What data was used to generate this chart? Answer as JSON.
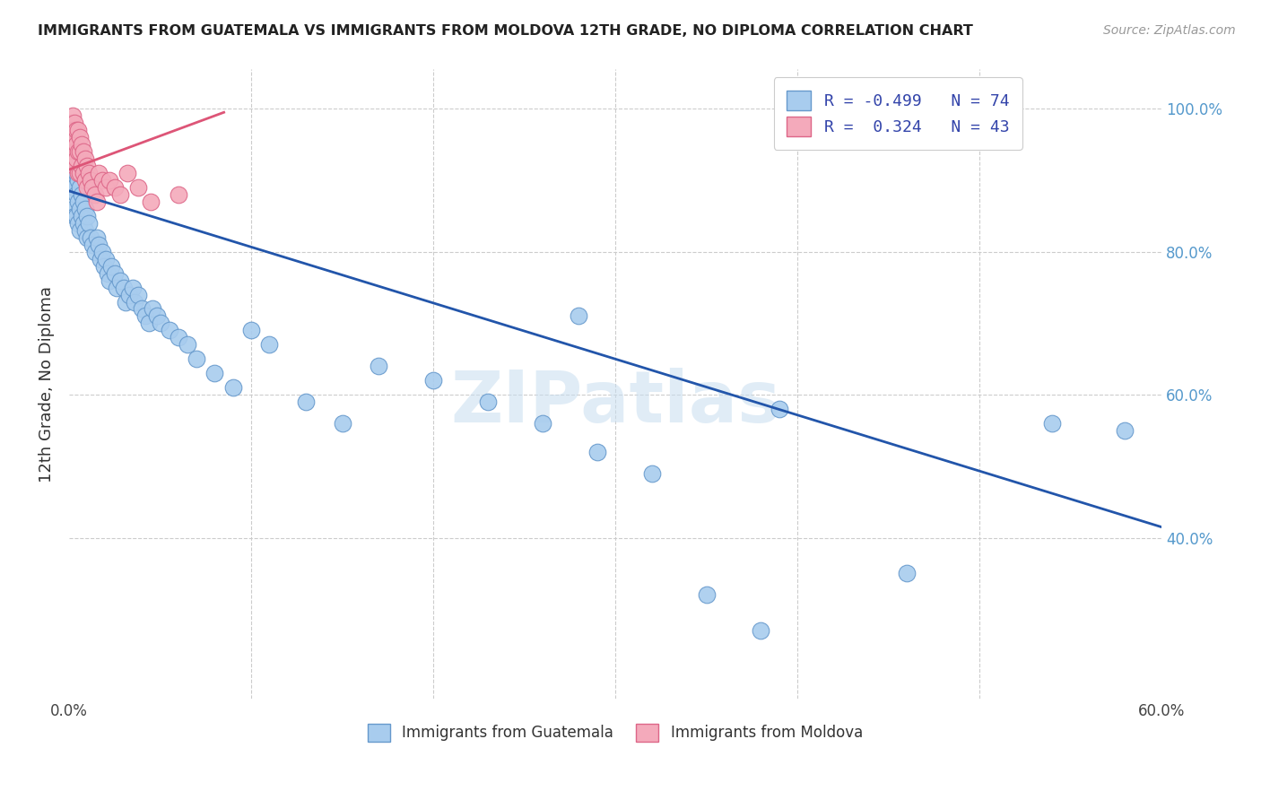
{
  "title": "IMMIGRANTS FROM GUATEMALA VS IMMIGRANTS FROM MOLDOVA 12TH GRADE, NO DIPLOMA CORRELATION CHART",
  "source": "Source: ZipAtlas.com",
  "ylabel": "12th Grade, No Diploma",
  "xlim": [
    0.0,
    0.6
  ],
  "ylim": [
    0.175,
    1.055
  ],
  "xtick_positions": [
    0.0,
    0.1,
    0.2,
    0.3,
    0.4,
    0.5,
    0.6
  ],
  "xtick_labels": [
    "0.0%",
    "",
    "",
    "",
    "",
    "",
    "60.0%"
  ],
  "ytick_positions": [
    0.4,
    0.6,
    0.8,
    1.0
  ],
  "ytick_labels": [
    "40.0%",
    "60.0%",
    "80.0%",
    "100.0%"
  ],
  "blue_R": -0.499,
  "blue_N": 74,
  "pink_R": 0.324,
  "pink_N": 43,
  "blue_color": "#A8CCEE",
  "blue_edge": "#6699CC",
  "pink_color": "#F4AABB",
  "pink_edge": "#DD6688",
  "blue_line_color": "#2255AA",
  "pink_line_color": "#DD5577",
  "blue_line_x0": 0.0,
  "blue_line_y0": 0.885,
  "blue_line_x1": 0.6,
  "blue_line_y1": 0.415,
  "pink_line_x0": 0.0,
  "pink_line_y0": 0.915,
  "pink_line_x1": 0.085,
  "pink_line_y1": 0.995,
  "watermark": "ZIPatlas",
  "background_color": "#FFFFFF",
  "grid_color": "#CCCCCC",
  "legend_label_blue": "R = -0.499   N = 74",
  "legend_label_pink": "R =  0.324   N = 43",
  "bottom_legend_blue": "Immigrants from Guatemala",
  "bottom_legend_pink": "Immigrants from Moldova",
  "blue_x": [
    0.001,
    0.002,
    0.002,
    0.003,
    0.003,
    0.003,
    0.004,
    0.004,
    0.004,
    0.005,
    0.005,
    0.005,
    0.006,
    0.006,
    0.006,
    0.007,
    0.007,
    0.008,
    0.008,
    0.009,
    0.009,
    0.01,
    0.01,
    0.011,
    0.012,
    0.013,
    0.014,
    0.015,
    0.016,
    0.017,
    0.018,
    0.019,
    0.02,
    0.021,
    0.022,
    0.023,
    0.025,
    0.026,
    0.028,
    0.03,
    0.031,
    0.033,
    0.035,
    0.036,
    0.038,
    0.04,
    0.042,
    0.044,
    0.046,
    0.048,
    0.05,
    0.055,
    0.06,
    0.065,
    0.07,
    0.08,
    0.09,
    0.1,
    0.11,
    0.13,
    0.15,
    0.17,
    0.2,
    0.23,
    0.26,
    0.29,
    0.32,
    0.35,
    0.38,
    0.28,
    0.46,
    0.39,
    0.54,
    0.58
  ],
  "blue_y": [
    0.91,
    0.89,
    0.86,
    0.92,
    0.89,
    0.85,
    0.91,
    0.88,
    0.85,
    0.9,
    0.87,
    0.84,
    0.89,
    0.86,
    0.83,
    0.88,
    0.85,
    0.87,
    0.84,
    0.86,
    0.83,
    0.85,
    0.82,
    0.84,
    0.82,
    0.81,
    0.8,
    0.82,
    0.81,
    0.79,
    0.8,
    0.78,
    0.79,
    0.77,
    0.76,
    0.78,
    0.77,
    0.75,
    0.76,
    0.75,
    0.73,
    0.74,
    0.75,
    0.73,
    0.74,
    0.72,
    0.71,
    0.7,
    0.72,
    0.71,
    0.7,
    0.69,
    0.68,
    0.67,
    0.65,
    0.63,
    0.61,
    0.69,
    0.67,
    0.59,
    0.56,
    0.64,
    0.62,
    0.59,
    0.56,
    0.52,
    0.49,
    0.32,
    0.27,
    0.71,
    0.35,
    0.58,
    0.56,
    0.55
  ],
  "pink_x": [
    0.001,
    0.001,
    0.001,
    0.002,
    0.002,
    0.002,
    0.002,
    0.003,
    0.003,
    0.003,
    0.003,
    0.004,
    0.004,
    0.004,
    0.005,
    0.005,
    0.005,
    0.006,
    0.006,
    0.006,
    0.007,
    0.007,
    0.008,
    0.008,
    0.009,
    0.009,
    0.01,
    0.01,
    0.011,
    0.012,
    0.013,
    0.014,
    0.015,
    0.016,
    0.018,
    0.02,
    0.022,
    0.025,
    0.028,
    0.032,
    0.038,
    0.045,
    0.06
  ],
  "pink_y": [
    0.98,
    0.96,
    0.94,
    0.99,
    0.97,
    0.95,
    0.93,
    0.98,
    0.96,
    0.94,
    0.92,
    0.97,
    0.95,
    0.93,
    0.97,
    0.94,
    0.91,
    0.96,
    0.94,
    0.91,
    0.95,
    0.92,
    0.94,
    0.91,
    0.93,
    0.9,
    0.92,
    0.89,
    0.91,
    0.9,
    0.89,
    0.88,
    0.87,
    0.91,
    0.9,
    0.89,
    0.9,
    0.89,
    0.88,
    0.91,
    0.89,
    0.87,
    0.88
  ]
}
